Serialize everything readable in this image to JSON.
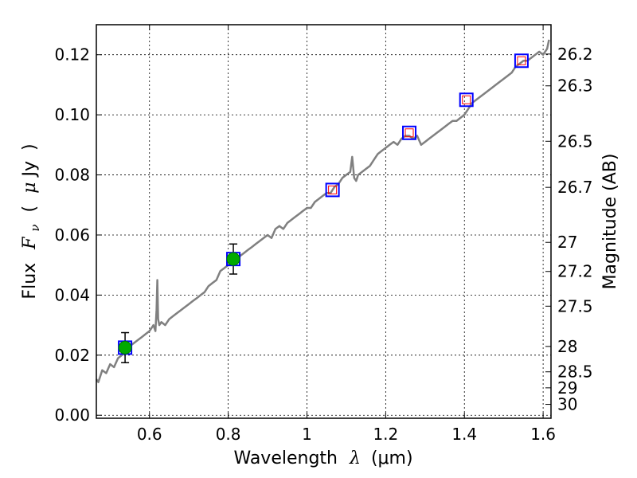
{
  "chart_data": {
    "type": "line",
    "xlabel_prefix": "Wavelength",
    "xlabel_symbol": "λ",
    "xlabel_unit": "(μm)",
    "ylabel_prefix": "Flux",
    "ylabel_symbol": "F",
    "ylabel_subscript": "ν",
    "ylabel_unit_open": "(",
    "ylabel_unit_mu": "μ",
    "ylabel_unit_rest": "Jy",
    "ylabel_unit_close": ")",
    "y2label": "Magnitude (AB)",
    "xlim": [
      0.465,
      1.62
    ],
    "ylim": [
      -0.001,
      0.13
    ],
    "grid": true,
    "x_ticks": [
      {
        "value": 0.6,
        "label": "0.6"
      },
      {
        "value": 0.8,
        "label": "0.8"
      },
      {
        "value": 1.0,
        "label": "1"
      },
      {
        "value": 1.2,
        "label": "1.2"
      },
      {
        "value": 1.4,
        "label": "1.4"
      },
      {
        "value": 1.6,
        "label": "1.6"
      }
    ],
    "y_ticks": [
      {
        "value": 0.0,
        "label": "0.00"
      },
      {
        "value": 0.02,
        "label": "0.02"
      },
      {
        "value": 0.04,
        "label": "0.04"
      },
      {
        "value": 0.06,
        "label": "0.06"
      },
      {
        "value": 0.08,
        "label": "0.08"
      },
      {
        "value": 0.1,
        "label": "0.10"
      },
      {
        "value": 0.12,
        "label": "0.12"
      }
    ],
    "mag_ticks": [
      {
        "mag": 26.2,
        "label": "26.2"
      },
      {
        "mag": 26.3,
        "label": "26.3"
      },
      {
        "mag": 26.5,
        "label": "26.5"
      },
      {
        "mag": 26.7,
        "label": "26.7"
      },
      {
        "mag": 27.0,
        "label": "27"
      },
      {
        "mag": 27.2,
        "label": "27.2"
      },
      {
        "mag": 27.5,
        "label": "27.5"
      },
      {
        "mag": 28.0,
        "label": "28"
      },
      {
        "mag": 28.5,
        "label": "28.5"
      },
      {
        "mag": 29.0,
        "label": "29"
      },
      {
        "mag": 30.0,
        "label": "30"
      }
    ],
    "series": [
      {
        "kind": "spectrum",
        "color": "#808080",
        "x": [
          0.465,
          0.47,
          0.48,
          0.49,
          0.5,
          0.51,
          0.52,
          0.53,
          0.54,
          0.55,
          0.56,
          0.57,
          0.58,
          0.59,
          0.6,
          0.605,
          0.61,
          0.615,
          0.618,
          0.62,
          0.622,
          0.625,
          0.63,
          0.64,
          0.65,
          0.66,
          0.67,
          0.68,
          0.69,
          0.7,
          0.71,
          0.72,
          0.73,
          0.74,
          0.75,
          0.76,
          0.77,
          0.78,
          0.79,
          0.8,
          0.81,
          0.82,
          0.83,
          0.84,
          0.85,
          0.86,
          0.87,
          0.88,
          0.89,
          0.9,
          0.91,
          0.92,
          0.93,
          0.94,
          0.95,
          0.96,
          0.97,
          0.98,
          0.99,
          1.0,
          1.01,
          1.02,
          1.03,
          1.04,
          1.05,
          1.06,
          1.07,
          1.08,
          1.09,
          1.1,
          1.11,
          1.115,
          1.12,
          1.125,
          1.13,
          1.14,
          1.15,
          1.16,
          1.17,
          1.18,
          1.19,
          1.2,
          1.21,
          1.22,
          1.23,
          1.24,
          1.25,
          1.26,
          1.27,
          1.28,
          1.29,
          1.3,
          1.31,
          1.32,
          1.33,
          1.34,
          1.35,
          1.36,
          1.37,
          1.38,
          1.39,
          1.4,
          1.41,
          1.42,
          1.43,
          1.44,
          1.45,
          1.46,
          1.47,
          1.48,
          1.49,
          1.5,
          1.51,
          1.52,
          1.53,
          1.54,
          1.55,
          1.56,
          1.57,
          1.58,
          1.59,
          1.6,
          1.61,
          1.615
        ],
        "y": [
          0.012,
          0.011,
          0.015,
          0.014,
          0.017,
          0.016,
          0.019,
          0.02,
          0.021,
          0.023,
          0.024,
          0.025,
          0.026,
          0.027,
          0.028,
          0.029,
          0.03,
          0.028,
          0.035,
          0.045,
          0.032,
          0.03,
          0.031,
          0.03,
          0.032,
          0.033,
          0.034,
          0.035,
          0.036,
          0.037,
          0.038,
          0.039,
          0.04,
          0.041,
          0.043,
          0.044,
          0.045,
          0.048,
          0.049,
          0.05,
          0.052,
          0.051,
          0.053,
          0.054,
          0.055,
          0.056,
          0.057,
          0.058,
          0.059,
          0.06,
          0.059,
          0.062,
          0.063,
          0.062,
          0.064,
          0.065,
          0.066,
          0.067,
          0.068,
          0.069,
          0.069,
          0.071,
          0.072,
          0.073,
          0.074,
          0.074,
          0.076,
          0.077,
          0.079,
          0.08,
          0.081,
          0.086,
          0.079,
          0.078,
          0.08,
          0.081,
          0.082,
          0.083,
          0.085,
          0.087,
          0.088,
          0.089,
          0.09,
          0.091,
          0.09,
          0.092,
          0.093,
          0.093,
          0.092,
          0.093,
          0.09,
          0.091,
          0.092,
          0.093,
          0.094,
          0.095,
          0.096,
          0.097,
          0.098,
          0.098,
          0.099,
          0.1,
          0.102,
          0.104,
          0.105,
          0.106,
          0.107,
          0.108,
          0.109,
          0.11,
          0.111,
          0.112,
          0.113,
          0.114,
          0.116,
          0.117,
          0.118,
          0.118,
          0.119,
          0.12,
          0.121,
          0.12,
          0.122,
          0.125
        ]
      },
      {
        "kind": "model_points",
        "marker": "square",
        "outer_color": "#0000ff",
        "inner_color": "#ff0000",
        "x": [
          0.538,
          0.813,
          1.065,
          1.26,
          1.405,
          1.545
        ],
        "y": [
          0.0225,
          0.052,
          0.075,
          0.094,
          0.105,
          0.118
        ]
      },
      {
        "kind": "observed_points",
        "marker": "circle",
        "color": "#00aa00",
        "x": [
          0.538,
          0.813
        ],
        "y": [
          0.0225,
          0.052
        ],
        "yerr": [
          0.005,
          0.005
        ]
      }
    ]
  }
}
